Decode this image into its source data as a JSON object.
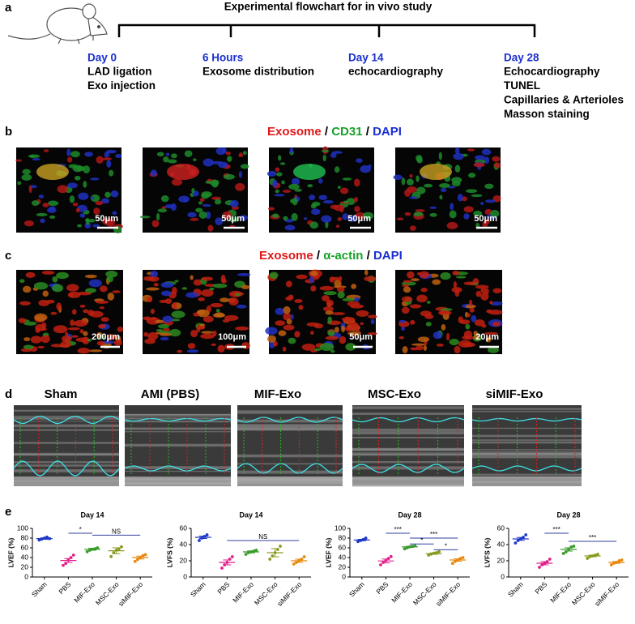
{
  "panel_a": {
    "label": "a",
    "title": "Experimental flowchart for in vivo study",
    "stages": [
      {
        "time": "Day 0",
        "items": [
          "LAD ligation",
          "Exo injection"
        ]
      },
      {
        "time": "6 Hours",
        "items": [
          "Exosome distribution"
        ]
      },
      {
        "time": "Day 14",
        "items": [
          "echocardiography"
        ]
      },
      {
        "time": "Day 28",
        "items": [
          "Echocardiography",
          "TUNEL",
          "Capillaries & Arterioles",
          "Masson staining"
        ]
      }
    ],
    "time_color": "#1a2fd0"
  },
  "panel_b": {
    "label": "b",
    "title_parts": [
      {
        "text": "Exosome",
        "color": "#e01818"
      },
      {
        "text": " / ",
        "color": "#000000"
      },
      {
        "text": "CD31",
        "color": "#18a028"
      },
      {
        "text": " / ",
        "color": "#000000"
      },
      {
        "text": "DAPI",
        "color": "#1a2fd0"
      }
    ],
    "scale_bars": [
      "50μm",
      "50μm",
      "50μm",
      "50μm"
    ]
  },
  "panel_c": {
    "label": "c",
    "title_parts": [
      {
        "text": "Exosome",
        "color": "#e01818"
      },
      {
        "text": " / ",
        "color": "#000000"
      },
      {
        "text": "α-actin",
        "color": "#18a028"
      },
      {
        "text": " / ",
        "color": "#000000"
      },
      {
        "text": "DAPI",
        "color": "#1a2fd0"
      }
    ],
    "scale_bars": [
      "200μm",
      "100μm",
      "50μm",
      "20μm"
    ]
  },
  "panel_d": {
    "label": "d",
    "groups": [
      "Sham",
      "AMI (PBS)",
      "MIF-Exo",
      "MSC-Exo",
      "siMIF-Exo"
    ]
  },
  "panel_e": {
    "label": "e"
  },
  "chart_data": [
    {
      "type": "dot_plot",
      "title": "Day 14",
      "y_label": "LVEF (%)",
      "ylim": [
        0,
        100
      ],
      "yticks": [
        0,
        20,
        40,
        60,
        80,
        100
      ],
      "groups": [
        {
          "name": "Sham",
          "color": "#2038c8",
          "values": [
            76,
            78,
            80,
            82,
            79
          ],
          "mean": 79,
          "sem": 1.5
        },
        {
          "name": "PBS",
          "color": "#e0208a",
          "values": [
            24,
            28,
            35,
            40,
            45
          ],
          "mean": 34,
          "sem": 4
        },
        {
          "name": "MIF-Exo",
          "color": "#3a9a2a",
          "values": [
            52,
            55,
            57,
            58,
            60
          ],
          "mean": 57,
          "sem": 2
        },
        {
          "name": "MSC-Exo",
          "color": "#8a9a20",
          "values": [
            42,
            50,
            55,
            58,
            62
          ],
          "mean": 54,
          "sem": 6
        },
        {
          "name": "siMIF-Exo",
          "color": "#e8880e",
          "values": [
            32,
            36,
            40,
            44,
            46
          ],
          "mean": 40,
          "sem": 3
        }
      ],
      "annotations": [
        {
          "label": "*",
          "from": "PBS",
          "to": "MIF-Exo",
          "y": 90
        },
        {
          "label": "NS",
          "from": "MIF-Exo",
          "to": "siMIF-Exo",
          "y": 86
        }
      ]
    },
    {
      "type": "dot_plot",
      "title": "Day 14",
      "y_label": "LVFS (%)",
      "ylim": [
        0,
        60
      ],
      "yticks": [
        0,
        20,
        40,
        60
      ],
      "groups": [
        {
          "name": "Sham",
          "color": "#2038c8",
          "values": [
            45,
            48,
            50,
            52
          ],
          "mean": 49,
          "sem": 1.5
        },
        {
          "name": "PBS",
          "color": "#e0208a",
          "values": [
            11,
            15,
            18,
            22,
            25
          ],
          "mean": 18,
          "sem": 3
        },
        {
          "name": "MIF-Exo",
          "color": "#3a9a2a",
          "values": [
            28,
            30,
            31,
            32,
            33
          ],
          "mean": 31,
          "sem": 1.2
        },
        {
          "name": "MSC-Exo",
          "color": "#8a9a20",
          "values": [
            22,
            26,
            30,
            34,
            38
          ],
          "mean": 30,
          "sem": 5
        },
        {
          "name": "siMIF-Exo",
          "color": "#e8880e",
          "values": [
            16,
            18,
            20,
            22,
            25
          ],
          "mean": 20,
          "sem": 2
        }
      ],
      "annotations": [
        {
          "label": "NS",
          "from": "PBS",
          "to": "siMIF-Exo",
          "y": 45
        }
      ]
    },
    {
      "type": "dot_plot",
      "title": "Day 28",
      "y_label": "LVEF (%)",
      "ylim": [
        0,
        100
      ],
      "yticks": [
        0,
        20,
        40,
        60,
        80,
        100
      ],
      "groups": [
        {
          "name": "Sham",
          "color": "#2038c8",
          "values": [
            73,
            75,
            77,
            80
          ],
          "mean": 76,
          "sem": 1.5
        },
        {
          "name": "PBS",
          "color": "#e0208a",
          "values": [
            25,
            30,
            34,
            38,
            42
          ],
          "mean": 33,
          "sem": 4
        },
        {
          "name": "MIF-Exo",
          "color": "#3a9a2a",
          "values": [
            58,
            60,
            62,
            63,
            64
          ],
          "mean": 62,
          "sem": 1.2
        },
        {
          "name": "MSC-Exo",
          "color": "#8a9a20",
          "values": [
            45,
            47,
            49,
            50,
            52
          ],
          "mean": 48,
          "sem": 1.5
        },
        {
          "name": "siMIF-Exo",
          "color": "#e8880e",
          "values": [
            28,
            32,
            35,
            38,
            40
          ],
          "mean": 35,
          "sem": 2.5
        }
      ],
      "annotations": [
        {
          "label": "***",
          "from": "PBS",
          "to": "MIF-Exo",
          "y": 90
        },
        {
          "label": "***",
          "from": "MIF-Exo",
          "to": "siMIF-Exo",
          "y": 80
        },
        {
          "label": "*",
          "from": "MIF-Exo",
          "to": "MSC-Exo",
          "y": 68
        },
        {
          "label": "*",
          "from": "MSC-Exo",
          "to": "siMIF-Exo",
          "y": 56
        }
      ]
    },
    {
      "type": "dot_plot",
      "title": "Day 28",
      "y_label": "LVFS (%)",
      "ylim": [
        0,
        60
      ],
      "yticks": [
        0,
        20,
        40,
        60
      ],
      "groups": [
        {
          "name": "Sham",
          "color": "#2038c8",
          "values": [
            42,
            45,
            47,
            49,
            52
          ],
          "mean": 47,
          "sem": 1.8
        },
        {
          "name": "PBS",
          "color": "#e0208a",
          "values": [
            12,
            15,
            17,
            19,
            22
          ],
          "mean": 17,
          "sem": 2
        },
        {
          "name": "MIF-Exo",
          "color": "#3a9a2a",
          "values": [
            29,
            31,
            34,
            37,
            38
          ],
          "mean": 34,
          "sem": 2
        },
        {
          "name": "MSC-Exo",
          "color": "#8a9a20",
          "values": [
            23,
            25,
            26,
            27,
            28
          ],
          "mean": 26,
          "sem": 1
        },
        {
          "name": "siMIF-Exo",
          "color": "#e8880e",
          "values": [
            15,
            17,
            18,
            20,
            21
          ],
          "mean": 18,
          "sem": 1.2
        }
      ],
      "annotations": [
        {
          "label": "***",
          "from": "PBS",
          "to": "MIF-Exo",
          "y": 54
        },
        {
          "label": "***",
          "from": "MIF-Exo",
          "to": "siMIF-Exo",
          "y": 44
        }
      ]
    }
  ]
}
